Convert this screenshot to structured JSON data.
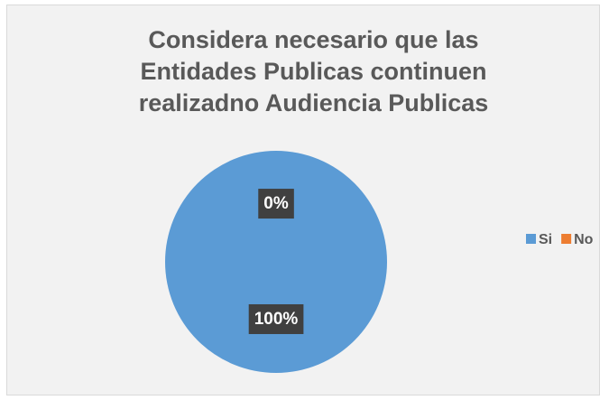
{
  "chart_data": {
    "type": "pie",
    "title": "Considera necesario que las Entidades Publicas continuen realizadno Audiencia Publicas",
    "categories": [
      "Si",
      "No"
    ],
    "values": [
      100,
      0
    ],
    "value_labels": [
      "100%",
      "0%"
    ],
    "colors": [
      "#5b9bd5",
      "#ed7d31"
    ],
    "legend": "right"
  }
}
